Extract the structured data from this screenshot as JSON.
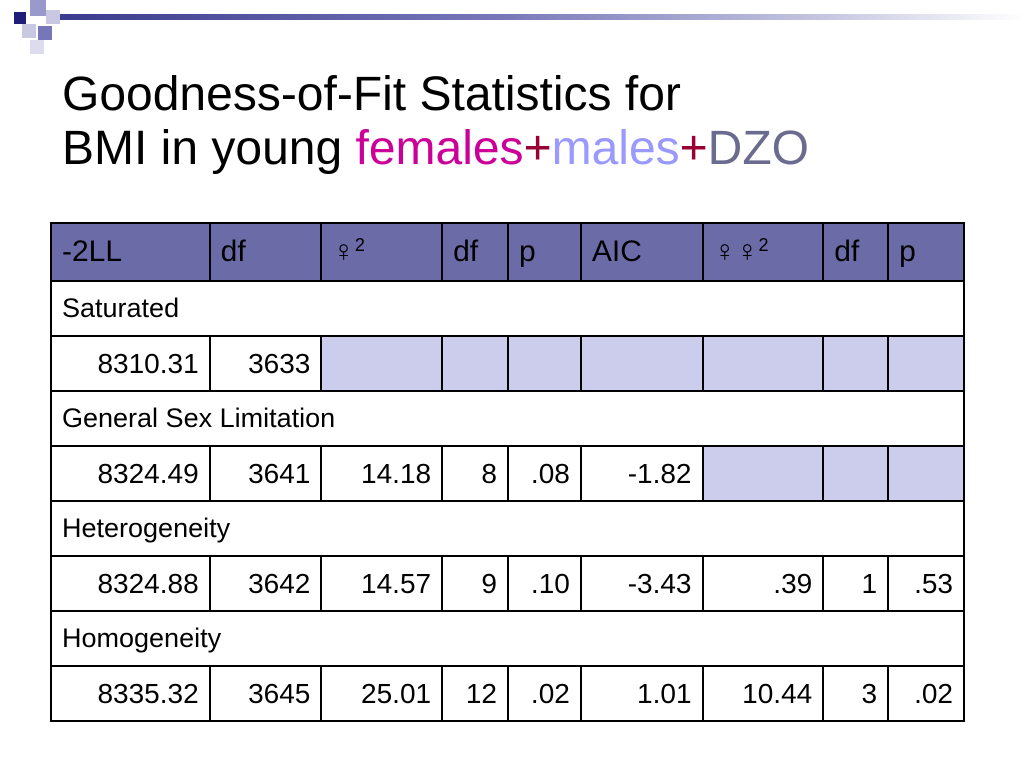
{
  "title": {
    "line1": "Goodness-of-Fit Statistics for",
    "line2_prefix": "BMI in young ",
    "females": "females",
    "plus1": "+",
    "males": "males",
    "plus2": "+",
    "dzo": "DZO"
  },
  "table": {
    "headers": [
      "-2LL",
      "df",
      "♀²",
      "df",
      "p",
      "AIC",
      "♀♀²",
      "df",
      "p"
    ],
    "header_glyphs": {
      "chi2_symbol": "♀",
      "delta_chi2_symbol": "♀♀",
      "sup": "2"
    },
    "sections": [
      {
        "label": "Saturated",
        "row": [
          "8310.31",
          "3633",
          "",
          "",
          "",
          "",
          "",
          "",
          ""
        ]
      },
      {
        "label": "General Sex Limitation",
        "row": [
          "8324.49",
          "3641",
          "14.18",
          "8",
          ".08",
          "-1.82",
          "",
          "",
          ""
        ]
      },
      {
        "label": "Heterogeneity",
        "row": [
          "8324.88",
          "3642",
          "14.57",
          "9",
          ".10",
          "-3.43",
          ".39",
          "1",
          ".53"
        ]
      },
      {
        "label": "Homogeneity",
        "row": [
          "8335.32",
          "3645",
          "25.01",
          "12",
          ".02",
          "1.01",
          "10.44",
          "3",
          ".02"
        ]
      }
    ]
  },
  "colors": {
    "header_bg": "#6b6ba7",
    "empty_cell_bg": "#ccccec",
    "females": "#cc0099",
    "males": "#9999ff",
    "plus": "#990033",
    "dzo": "#6b6b8f"
  }
}
